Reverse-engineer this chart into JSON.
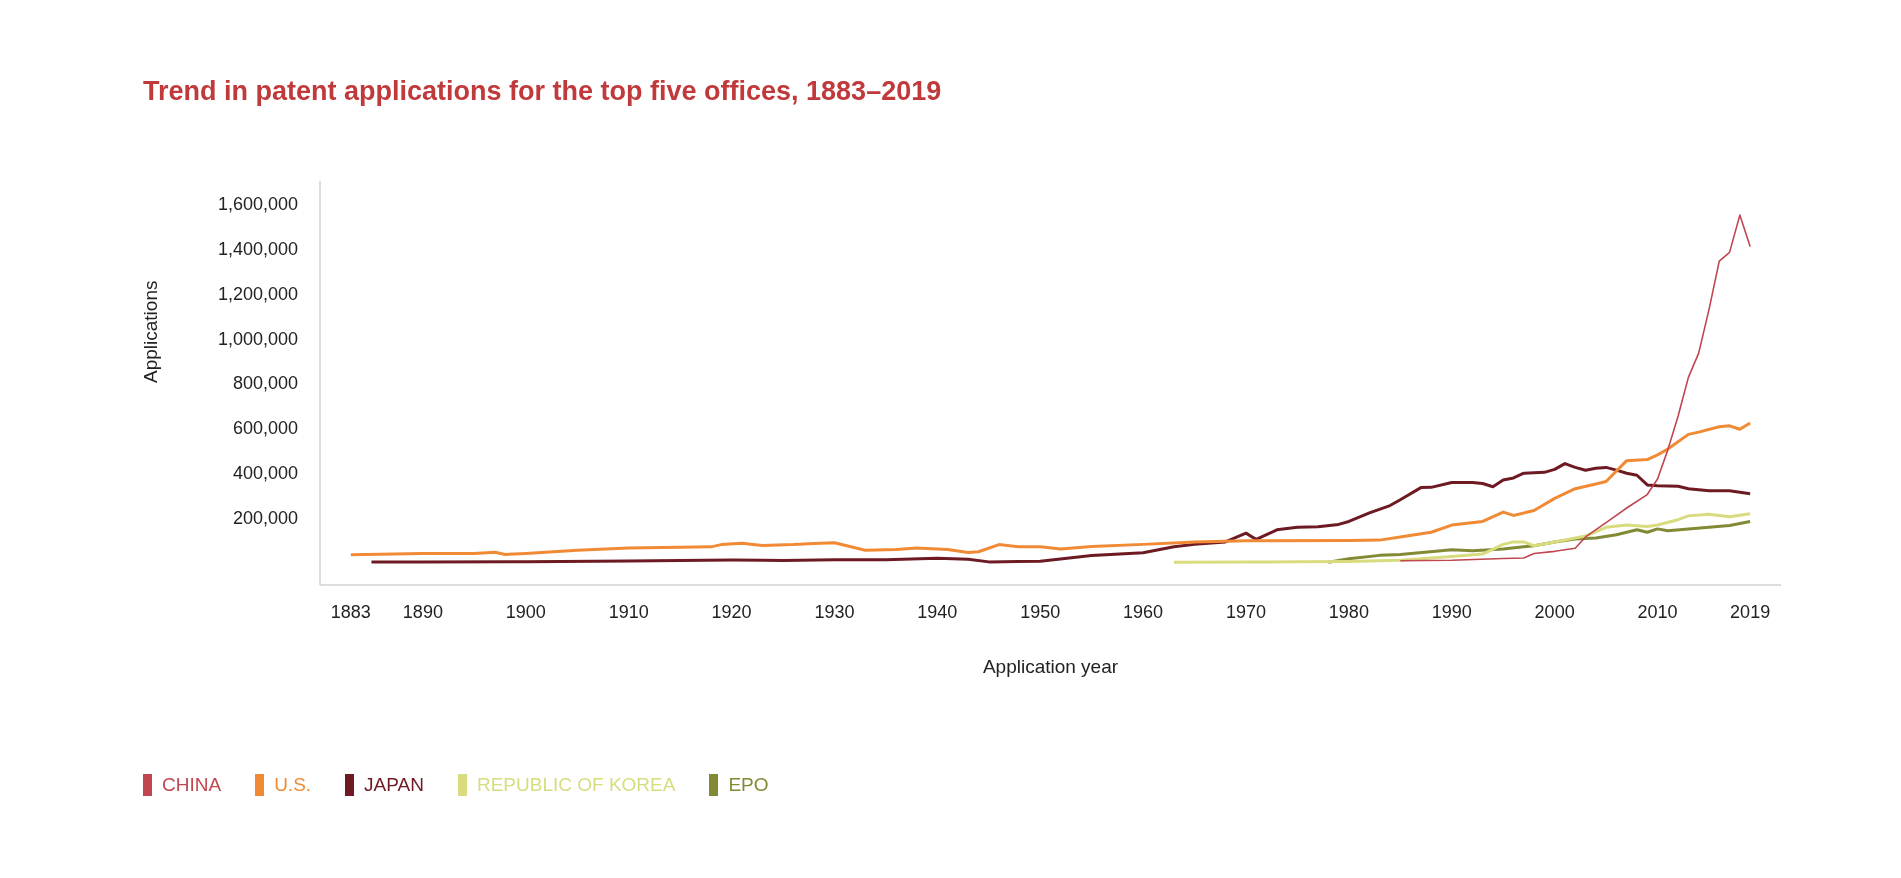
{
  "chart_data": {
    "type": "line",
    "title": "Trend in patent applications for the top five offices, 1883–2019",
    "xlabel": "Application year",
    "ylabel": "Applications",
    "legend": "bottom",
    "xlim": [
      1880,
      2022
    ],
    "xticks": [
      1883,
      1890,
      1900,
      1910,
      1920,
      1930,
      1940,
      1950,
      1960,
      1970,
      1980,
      1990,
      2000,
      2010,
      2019
    ],
    "ylim": [
      -100000,
      1700000
    ],
    "yticks": [
      {
        "value": 200000,
        "label": "200,000"
      },
      {
        "value": 400000,
        "label": "400,000"
      },
      {
        "value": 600000,
        "label": "600,000"
      },
      {
        "value": 800000,
        "label": "800,000"
      },
      {
        "value": 1000000,
        "label": "1,000,000"
      },
      {
        "value": 1200000,
        "label": "1,200,000"
      },
      {
        "value": 1400000,
        "label": "1,400,000"
      },
      {
        "value": 1600000,
        "label": "1,600,000"
      }
    ],
    "series": [
      {
        "name": "CHINA",
        "color": "#c0464f",
        "x": [
          1985,
          1990,
          1995,
          1997,
          1998,
          2000,
          2002,
          2003,
          2005,
          2007,
          2009,
          2010,
          2011,
          2012,
          2013,
          2014,
          2015,
          2016,
          2017,
          2018,
          2019
        ],
        "values": [
          8000,
          10000,
          18000,
          20000,
          40000,
          50000,
          64000,
          114000,
          178000,
          243000,
          303000,
          372000,
          502000,
          653000,
          825000,
          933000,
          1127000,
          1343000,
          1382000,
          1548000,
          1408000
        ]
      },
      {
        "name": "U.S.",
        "color": "#f08a34",
        "x": [
          1883,
          1890,
          1895,
          1897,
          1898,
          1900,
          1905,
          1910,
          1915,
          1918,
          1919,
          1921,
          1923,
          1926,
          1928,
          1930,
          1933,
          1936,
          1938,
          1941,
          1943,
          1944,
          1946,
          1948,
          1950,
          1952,
          1955,
          1960,
          1965,
          1970,
          1972,
          1980,
          1983,
          1985,
          1988,
          1990,
          1993,
          1995,
          1996,
          1998,
          2000,
          2002,
          2004,
          2005,
          2007,
          2009,
          2010,
          2011,
          2013,
          2014,
          2016,
          2017,
          2018,
          2019
        ],
        "values": [
          35000,
          40000,
          40000,
          46000,
          36000,
          40000,
          55000,
          65000,
          68000,
          70000,
          80000,
          86000,
          76000,
          80000,
          85000,
          88000,
          55000,
          58000,
          65000,
          58000,
          45000,
          48000,
          80000,
          70000,
          70000,
          60000,
          72000,
          81000,
          92000,
          97000,
          97000,
          98000,
          100000,
          114000,
          135000,
          167000,
          183000,
          225000,
          210000,
          232000,
          286000,
          329000,
          350000,
          361000,
          454000,
          459000,
          480000,
          506000,
          571000,
          581000,
          605000,
          609000,
          594000,
          622000
        ]
      },
      {
        "name": "JAPAN",
        "color": "#6e1a23",
        "x": [
          1885,
          1890,
          1900,
          1910,
          1920,
          1925,
          1930,
          1935,
          1940,
          1943,
          1945,
          1950,
          1955,
          1960,
          1963,
          1965,
          1968,
          1970,
          1971,
          1972,
          1973,
          1975,
          1977,
          1979,
          1980,
          1982,
          1984,
          1985,
          1987,
          1988,
          1990,
          1992,
          1993,
          1994,
          1995,
          1996,
          1997,
          1999,
          2000,
          2001,
          2002,
          2003,
          2004,
          2005,
          2006,
          2007,
          2008,
          2009,
          2010,
          2012,
          2013,
          2015,
          2017,
          2019
        ],
        "values": [
          2000,
          3000,
          4000,
          7000,
          11000,
          9000,
          12000,
          13000,
          19000,
          15000,
          3000,
          6000,
          31000,
          44000,
          70000,
          81000,
          92000,
          131000,
          103000,
          124000,
          146000,
          157000,
          160000,
          170000,
          183000,
          221000,
          254000,
          280000,
          334000,
          335000,
          357000,
          357000,
          352000,
          338000,
          368000,
          377000,
          398000,
          402000,
          415000,
          441000,
          424000,
          411000,
          420000,
          424000,
          412000,
          398000,
          389000,
          346000,
          342000,
          340000,
          329000,
          320000,
          320000,
          307000
        ]
      },
      {
        "name": "REPUBLIC OF KOREA",
        "color": "#d9dc7e",
        "x": [
          1963,
          1970,
          1975,
          1980,
          1985,
          1990,
          1993,
          1995,
          1996,
          1997,
          1998,
          2000,
          2003,
          2005,
          2007,
          2009,
          2010,
          2012,
          2013,
          2015,
          2017,
          2019
        ],
        "values": [
          1000,
          2000,
          4000,
          5000,
          10000,
          27000,
          38000,
          81000,
          92000,
          92000,
          75000,
          92000,
          118000,
          157000,
          167000,
          161000,
          167000,
          191000,
          208000,
          215000,
          204000,
          217000
        ]
      },
      {
        "name": "EPO",
        "color": "#828a35",
        "x": [
          1978,
          1980,
          1983,
          1985,
          1990,
          1992,
          1995,
          1998,
          2000,
          2002,
          2004,
          2006,
          2008,
          2009,
          2010,
          2011,
          2013,
          2015,
          2017,
          2019
        ],
        "values": [
          1000,
          17000,
          32000,
          36000,
          57000,
          53000,
          60000,
          75000,
          92000,
          105000,
          109000,
          124000,
          146000,
          135000,
          150000,
          142000,
          150000,
          157000,
          165000,
          183000
        ]
      }
    ]
  }
}
